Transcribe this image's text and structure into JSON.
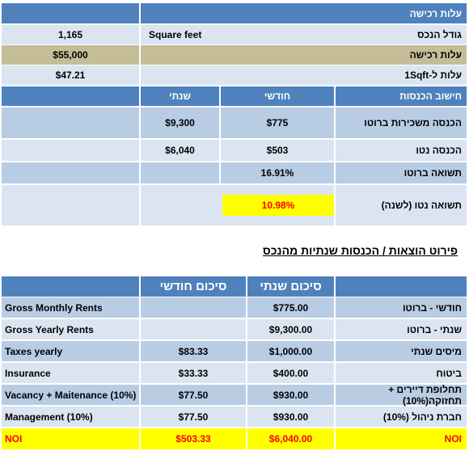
{
  "top_table": {
    "header": {
      "label": "עלות רכישה"
    },
    "size": {
      "label": "גודל הנכס",
      "unit": "Square feet",
      "value": "1,165"
    },
    "purchase_cost": {
      "label": "עלות רכישה",
      "value": "$55,000"
    },
    "cost_per_sqft": {
      "label": "עלות ל-1Sqft",
      "value": "$47.21"
    },
    "income_header": {
      "label": "חישוב הכנסות",
      "monthly": "חודשי",
      "yearly": "שנתי"
    },
    "gross_rent": {
      "label": "הכנסה משכירות ברוטו",
      "monthly": "$775",
      "yearly": "$9,300"
    },
    "net_income": {
      "label": "הכנסה נטו",
      "monthly": "$503",
      "yearly": "$6,040"
    },
    "gross_return": {
      "label": "תשואה ברוטו",
      "value": "16.91%"
    },
    "net_return": {
      "label": "תשואה נטו (לשנה)",
      "value": "10.98%"
    }
  },
  "section_title": "פירוט הוצאות / הכנסות שנתיות מהנכס",
  "bottom_table": {
    "headers": {
      "yearly_summary": "סיכום שנתי",
      "monthly_summary": "סיכום חודשי"
    },
    "rows": [
      {
        "en": "Gross Monthly Rents",
        "monthly": "",
        "yearly": "$775.00",
        "he": "חודשי - ברוטו"
      },
      {
        "en": "Gross Yearly Rents",
        "monthly": "",
        "yearly": "$9,300.00",
        "he": "שנתי - ברוטו"
      },
      {
        "en": "Taxes yearly",
        "monthly": "$83.33",
        "yearly": "$1,000.00",
        "he": "מיסים שנתי"
      },
      {
        "en": "Insurance",
        "monthly": "$33.33",
        "yearly": "$400.00",
        "he": "ביטוח"
      },
      {
        "en": "Vacancy + Maitenance (10%)",
        "monthly": "$77.50",
        "yearly": "$930.00",
        "he": "תחלופת דיירים + תחזוקה(10%)"
      },
      {
        "en": "Management (10%)",
        "monthly": "$77.50",
        "yearly": "$930.00",
        "he": "חברת ניהול (10%)"
      }
    ],
    "noi": {
      "en": "NOI",
      "monthly": "$503.33",
      "yearly": "$6,040.00",
      "he": "NOI"
    }
  },
  "colors": {
    "blue": "#4f81bd",
    "light": "#b8cce4",
    "pale": "#dbe5f1",
    "tan": "#c4bd97",
    "highlight": "#ffff00",
    "noi_text": "#ff0000"
  }
}
